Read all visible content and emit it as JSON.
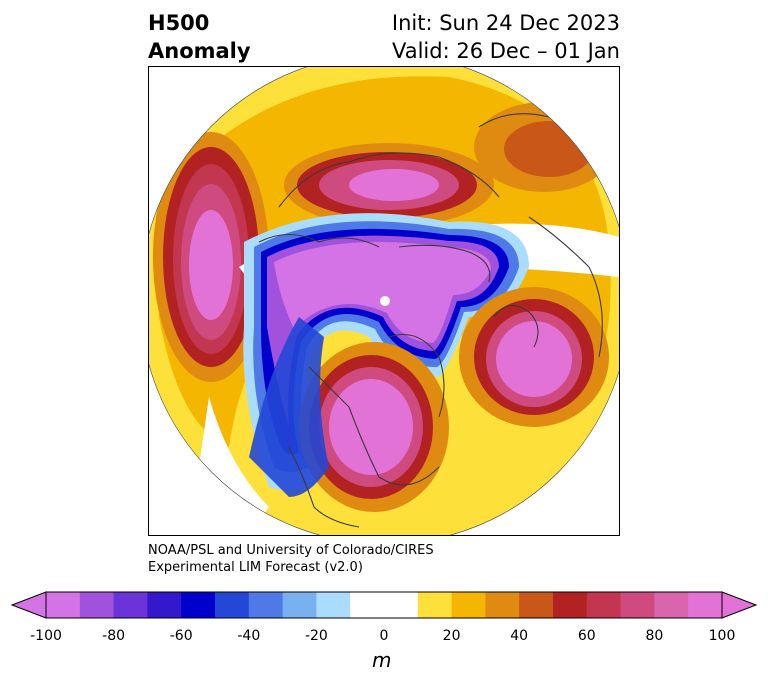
{
  "header": {
    "title_line1": "H500",
    "title_line2": "Anomaly",
    "init": "Init: Sun 24 Dec 2023",
    "valid": "Valid: 26 Dec – 01 Jan"
  },
  "credit": {
    "line1": "NOAA/PSL and University of Colorado/CIRES",
    "line2": "Experimental LIM Forecast (v2.0)"
  },
  "colorbar": {
    "unit": "m",
    "tick_labels": [
      "-100",
      "-80",
      "-60",
      "-40",
      "-20",
      "0",
      "20",
      "40",
      "60",
      "80",
      "100"
    ],
    "colors": [
      "#d473e6",
      "#a052dd",
      "#6a34d8",
      "#3418cc",
      "#0000cc",
      "#2347d6",
      "#4e79e6",
      "#78b0f0",
      "#aadcfc",
      "#ffffff",
      "#ffffff",
      "#fde03a",
      "#f4b600",
      "#df8a10",
      "#c95818",
      "#b22222",
      "#c23650",
      "#cf4a7e",
      "#d966ad",
      "#e372d6"
    ]
  },
  "map": {
    "projection": "north-polar-stereographic",
    "variable": "500 hPa geopotential height anomaly",
    "anomaly_centers": [
      {
        "sign": "negative",
        "region": "Arctic / Siberia",
        "peak_m": -100
      },
      {
        "sign": "negative",
        "region": "Western North America / Pacific coast",
        "peak_m": -70
      },
      {
        "sign": "positive",
        "region": "North Pacific / Bering Sea",
        "peak_m": 100
      },
      {
        "sign": "positive",
        "region": "Eastern Canada / Great Lakes",
        "peak_m": 100
      },
      {
        "sign": "positive",
        "region": "North Atlantic / Iceland",
        "peak_m": 100
      },
      {
        "sign": "positive",
        "region": "Central Asia",
        "peak_m": 80
      }
    ]
  }
}
